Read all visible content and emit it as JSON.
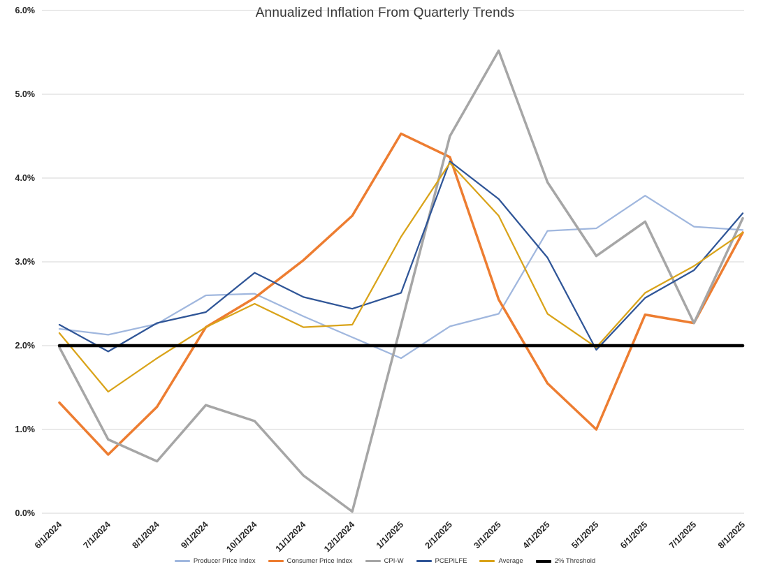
{
  "chart_data": {
    "type": "line",
    "title": "Annualized Inflation From Quarterly Trends",
    "xlabel": "",
    "ylabel": "",
    "ylim": [
      0,
      6
    ],
    "y_tick_step": 1,
    "y_ticks": [
      "0.0%",
      "1.0%",
      "2.0%",
      "3.0%",
      "4.0%",
      "5.0%",
      "6.0%"
    ],
    "grid": true,
    "legend_position": "bottom",
    "x": [
      "6/1/2024",
      "7/1/2024",
      "8/1/2024",
      "9/1/2024",
      "10/1/2024",
      "11/1/2024",
      "12/1/2024",
      "1/1/2025",
      "2/1/2025",
      "3/1/2025",
      "4/1/2025",
      "5/1/2025",
      "6/1/2025",
      "7/1/2025",
      "8/1/2025"
    ],
    "series": [
      {
        "name": "Producer Price Index",
        "color": "#A0B7DE",
        "width": 2.25,
        "values": [
          2.2,
          2.13,
          2.26,
          2.6,
          2.62,
          2.35,
          2.1,
          1.85,
          2.23,
          2.38,
          3.37,
          3.4,
          3.79,
          3.42,
          3.38
        ]
      },
      {
        "name": "Consumer Price Index",
        "color": "#ED7D31",
        "width": 3.5,
        "values": [
          1.32,
          0.7,
          1.27,
          2.22,
          2.57,
          3.02,
          3.55,
          4.53,
          4.25,
          2.55,
          1.55,
          1.0,
          2.37,
          2.27,
          3.35
        ]
      },
      {
        "name": "CPI-W",
        "color": "#A6A6A6",
        "width": 3.5,
        "values": [
          1.98,
          0.88,
          0.62,
          1.29,
          1.1,
          0.45,
          0.02,
          2.25,
          4.5,
          5.52,
          3.95,
          3.07,
          3.48,
          2.27,
          3.52
        ]
      },
      {
        "name": "PCEPILFE",
        "color": "#2F5597",
        "width": 2.25,
        "values": [
          2.25,
          1.93,
          2.27,
          2.4,
          2.87,
          2.58,
          2.44,
          2.63,
          4.2,
          3.75,
          3.05,
          1.95,
          2.57,
          2.9,
          3.58
        ]
      },
      {
        "name": "Average",
        "color": "#D9A319",
        "width": 2.25,
        "values": [
          2.15,
          1.45,
          1.85,
          2.22,
          2.5,
          2.22,
          2.25,
          3.3,
          4.18,
          3.55,
          2.38,
          1.98,
          2.63,
          2.95,
          3.35
        ]
      },
      {
        "name": "2% Threshold",
        "color": "#000000",
        "width": 4.5,
        "values": [
          2,
          2,
          2,
          2,
          2,
          2,
          2,
          2,
          2,
          2,
          2,
          2,
          2,
          2,
          2
        ]
      }
    ]
  }
}
